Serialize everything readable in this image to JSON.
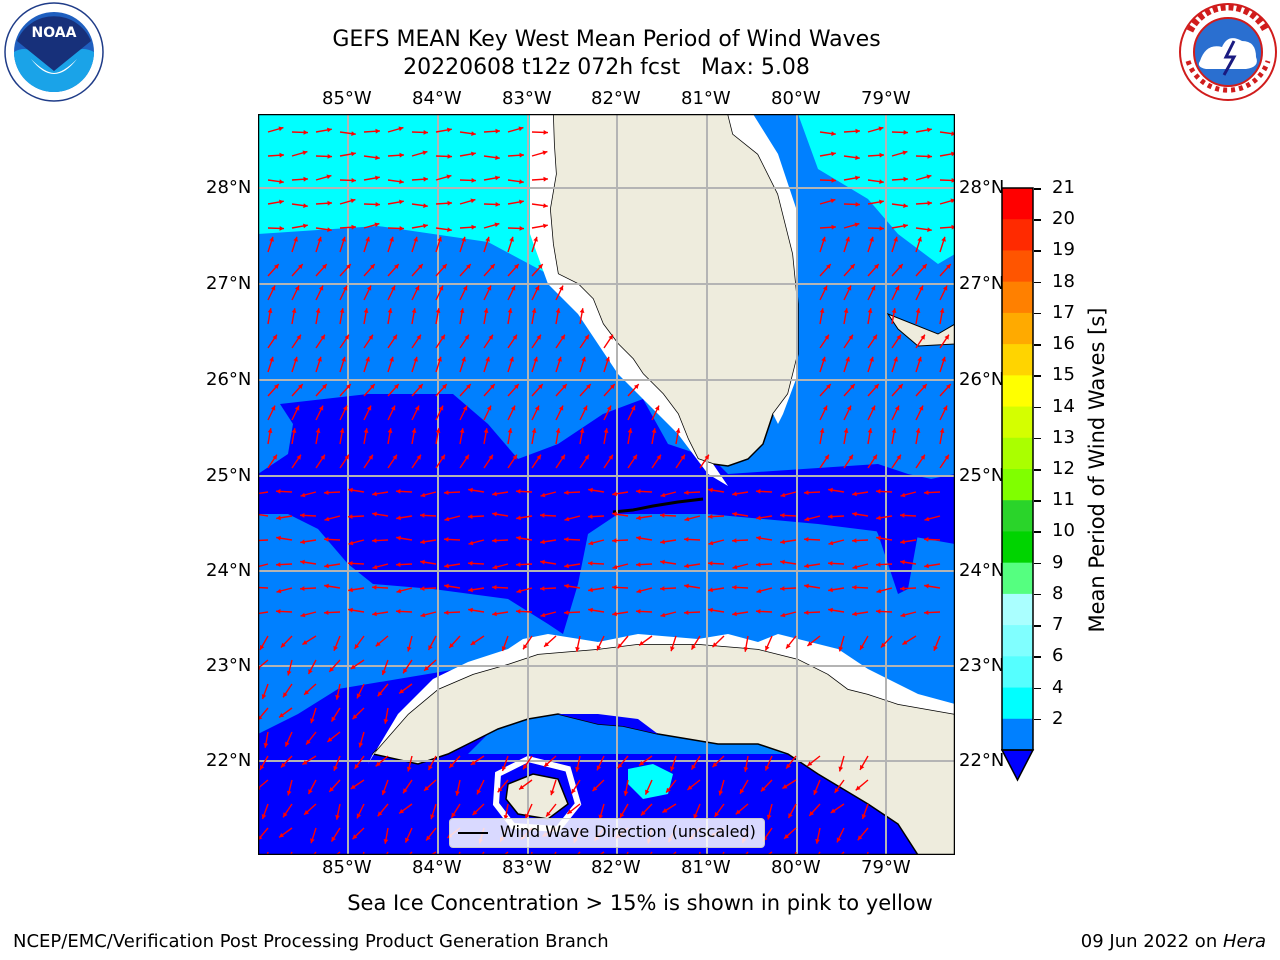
{
  "header": {
    "title_line1": "GEFS MEAN Key West Mean Period of Wind Waves",
    "title_line2": "20220608 t12z 072h fcst   Max: 5.08"
  },
  "logos": {
    "noaa_text": "NOAA",
    "noaa_ring": "NATIONAL OCEANIC AND ATMOSPHERIC ADMINISTRATION · U.S. DEPARTMENT OF COMMERCE",
    "nws_ring": "NATIONAL WEATHER SERVICE"
  },
  "map": {
    "lon_labels": [
      "85°W",
      "84°W",
      "83°W",
      "82°W",
      "81°W",
      "80°W",
      "79°W"
    ],
    "lat_labels": [
      "28°N",
      "27°N",
      "26°N",
      "25°N",
      "24°N",
      "23°N",
      "22°N"
    ],
    "legend_label": "Wind Wave Direction (unscaled)",
    "colors": {
      "land": "#eeecdd",
      "band_2_4": "#0080ff",
      "band_4_6": "#00ffff",
      "below_2": "#0000ff",
      "arrow": "#ff0000",
      "grid": "#b4b4b4"
    }
  },
  "colorbar": {
    "label": "Mean Period of Wind Waves [s]",
    "ticks": [
      "21",
      "20",
      "19",
      "18",
      "17",
      "16",
      "15",
      "14",
      "13",
      "12",
      "11",
      "10",
      "9",
      "8",
      "7",
      "6",
      "4",
      "2"
    ],
    "colors": [
      "#ff0000",
      "#ff2a00",
      "#ff5500",
      "#ff8000",
      "#ffaa00",
      "#ffd400",
      "#ffff00",
      "#d4ff00",
      "#aaff00",
      "#80ff00",
      "#2ad42a",
      "#00d400",
      "#55ff80",
      "#aaffff",
      "#80ffff",
      "#55ffff",
      "#00ffff",
      "#0080ff"
    ]
  },
  "footnote": "Sea Ice Concentration > 15% is shown in pink to yellow",
  "footer": {
    "left": "NCEP/EMC/Verification Post Processing Product Generation Branch",
    "date": "09 Jun 2022 on ",
    "machine": "Hera"
  }
}
